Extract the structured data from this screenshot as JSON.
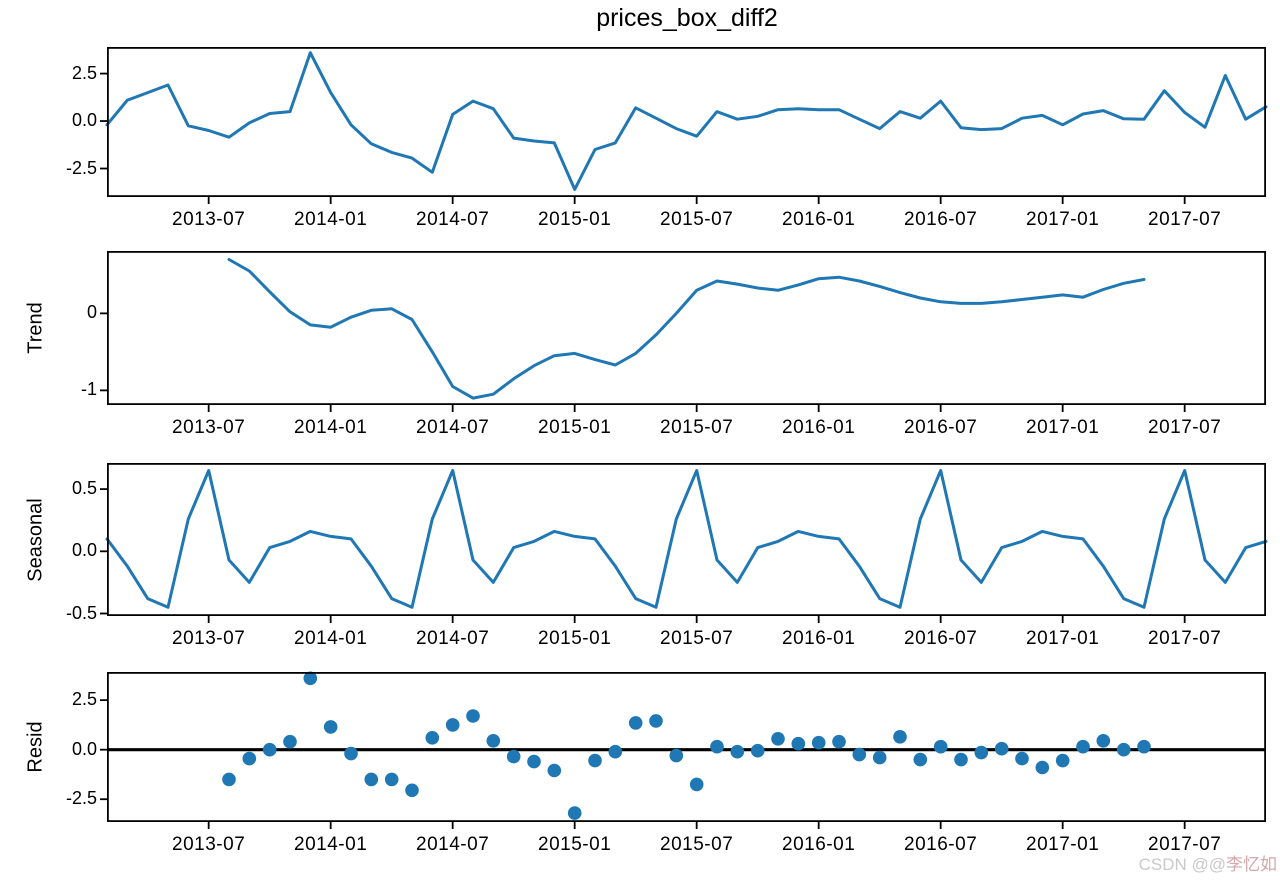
{
  "title": "prices_box_diff2",
  "watermark": {
    "prefix": "CSDN @@",
    "name": "李忆如"
  },
  "colors": {
    "line": "#1f77b4",
    "marker": "#1f77b4",
    "zero_line": "#000000",
    "axis": "#000000",
    "text": "#000000",
    "watermark_prefix": "#c9c9c9",
    "watermark_name": "#d2a8a8"
  },
  "chart_data": {
    "type": "line",
    "description": "Seasonal decomposition: observed, trend, seasonal (line panels) and residual (scatter panel), monthly data",
    "x_months": [
      "2013-02",
      "2013-03",
      "2013-04",
      "2013-05",
      "2013-06",
      "2013-07",
      "2013-08",
      "2013-09",
      "2013-10",
      "2013-11",
      "2013-12",
      "2014-01",
      "2014-02",
      "2014-03",
      "2014-04",
      "2014-05",
      "2014-06",
      "2014-07",
      "2014-08",
      "2014-09",
      "2014-10",
      "2014-11",
      "2014-12",
      "2015-01",
      "2015-02",
      "2015-03",
      "2015-04",
      "2015-05",
      "2015-06",
      "2015-07",
      "2015-08",
      "2015-09",
      "2015-10",
      "2015-11",
      "2015-12",
      "2016-01",
      "2016-02",
      "2016-03",
      "2016-04",
      "2016-05",
      "2016-06",
      "2016-07",
      "2016-08",
      "2016-09",
      "2016-10",
      "2016-11",
      "2016-12",
      "2017-01",
      "2017-02",
      "2017-03",
      "2017-04",
      "2017-05",
      "2017-06",
      "2017-07",
      "2017-08",
      "2017-09",
      "2017-10",
      "2017-11"
    ],
    "x_tick_labels": [
      "2013-07",
      "2014-01",
      "2014-07",
      "2015-01",
      "2015-07",
      "2016-01",
      "2016-07",
      "2017-01",
      "2017-07"
    ],
    "x_tick_indices": [
      5,
      11,
      17,
      23,
      29,
      35,
      41,
      47,
      53
    ],
    "panels": [
      {
        "name": "observed",
        "type": "line",
        "ylabel": "",
        "ytick_values": [
          2.5,
          0.0,
          -2.5
        ],
        "ytick_labels": [
          "2.5",
          "0.0",
          "-2.5"
        ],
        "ylim": [
          -4.0,
          3.9
        ],
        "start_month": "2013-02",
        "start_index": 0,
        "values": [
          -0.2,
          1.1,
          1.5,
          1.9,
          -0.25,
          -0.5,
          -0.85,
          -0.1,
          0.4,
          0.5,
          3.6,
          1.5,
          -0.2,
          -1.2,
          -1.65,
          -1.95,
          -2.7,
          0.35,
          1.05,
          0.65,
          -0.9,
          -1.05,
          -1.15,
          -3.6,
          -1.5,
          -1.15,
          0.7,
          0.15,
          -0.4,
          -0.8,
          0.5,
          0.1,
          0.25,
          0.6,
          0.65,
          0.6,
          0.6,
          0.1,
          -0.4,
          0.5,
          0.15,
          1.05,
          -0.35,
          -0.45,
          -0.4,
          0.15,
          0.3,
          -0.2,
          0.37,
          0.55,
          0.12,
          0.1,
          1.6,
          0.45,
          -0.33,
          2.4,
          0.1,
          0.75
        ]
      },
      {
        "name": "trend",
        "type": "line",
        "ylabel": "Trend",
        "ytick_values": [
          0,
          -1
        ],
        "ytick_labels": [
          "0",
          "-1"
        ],
        "ylim": [
          -1.19,
          0.81
        ],
        "start_month": "2013-08",
        "start_index": 6,
        "values": [
          0.7,
          0.55,
          0.28,
          0.02,
          -0.15,
          -0.18,
          -0.05,
          0.04,
          0.06,
          -0.08,
          -0.5,
          -0.95,
          -1.1,
          -1.05,
          -0.85,
          -0.68,
          -0.55,
          -0.52,
          -0.6,
          -0.67,
          -0.52,
          -0.28,
          0.0,
          0.3,
          0.42,
          0.38,
          0.33,
          0.3,
          0.37,
          0.45,
          0.47,
          0.42,
          0.35,
          0.27,
          0.2,
          0.15,
          0.13,
          0.13,
          0.15,
          0.18,
          0.21,
          0.24,
          0.21,
          0.31,
          0.39,
          0.44
        ]
      },
      {
        "name": "seasonal",
        "type": "line",
        "ylabel": "Seasonal",
        "ytick_values": [
          0.5,
          0.0,
          -0.5
        ],
        "ytick_labels": [
          "0.5",
          "0.0",
          "-0.5"
        ],
        "ylim": [
          -0.52,
          0.71
        ],
        "start_month": "2013-02",
        "start_index": 0,
        "values": [
          0.1,
          -0.12,
          -0.38,
          -0.45,
          0.26,
          0.65,
          -0.07,
          -0.25,
          0.03,
          0.08,
          0.16,
          0.12,
          0.1,
          -0.12,
          -0.38,
          -0.45,
          0.26,
          0.65,
          -0.07,
          -0.25,
          0.03,
          0.08,
          0.16,
          0.12,
          0.1,
          -0.12,
          -0.38,
          -0.45,
          0.26,
          0.65,
          -0.07,
          -0.25,
          0.03,
          0.08,
          0.16,
          0.12,
          0.1,
          -0.12,
          -0.38,
          -0.45,
          0.26,
          0.65,
          -0.07,
          -0.25,
          0.03,
          0.08,
          0.16,
          0.12,
          0.1,
          -0.12,
          -0.38,
          -0.45,
          0.26,
          0.65,
          -0.07,
          -0.25,
          0.03,
          0.08
        ]
      },
      {
        "name": "resid",
        "type": "scatter",
        "ylabel": "Resid",
        "zero_line": true,
        "ytick_values": [
          2.5,
          0.0,
          -2.5
        ],
        "ytick_labels": [
          "2.5",
          "0.0",
          "-2.5"
        ],
        "ylim": [
          -3.65,
          3.92
        ],
        "start_month": "2013-08",
        "start_index": 6,
        "values": [
          -1.5,
          -0.45,
          0.0,
          0.4,
          3.6,
          1.15,
          -0.2,
          -1.5,
          -1.5,
          -2.05,
          0.6,
          1.25,
          1.7,
          0.45,
          -0.35,
          -0.6,
          -1.05,
          -3.2,
          -0.55,
          -0.1,
          1.35,
          1.45,
          -0.3,
          -1.75,
          0.15,
          -0.1,
          -0.05,
          0.55,
          0.3,
          0.35,
          0.4,
          -0.25,
          -0.4,
          0.65,
          -0.5,
          0.15,
          -0.5,
          -0.15,
          0.05,
          -0.45,
          -0.9,
          -0.55,
          0.15,
          0.45,
          0.0,
          0.15
        ]
      }
    ]
  }
}
